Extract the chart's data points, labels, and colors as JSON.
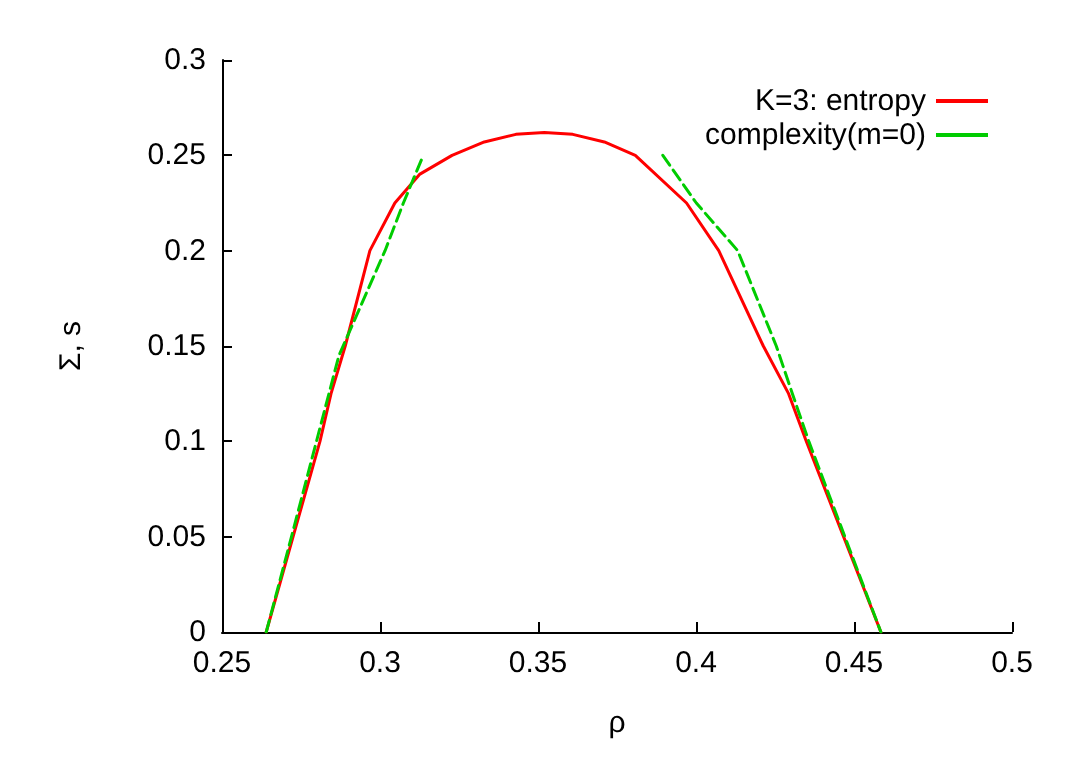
{
  "chart_data": {
    "type": "line",
    "xlabel": "ρ",
    "ylabel": "Σ, s",
    "xlim": [
      0.25,
      0.5
    ],
    "ylim": [
      0,
      0.3
    ],
    "xticks": [
      0.25,
      0.3,
      0.35,
      0.4,
      0.45,
      0.5
    ],
    "yticks": [
      0,
      0.05,
      0.1,
      0.15,
      0.2,
      0.25,
      0.3
    ],
    "grid": false,
    "legend": "top right",
    "marker": "none",
    "series": [
      {
        "name": "K=3: entropy",
        "color": "#ff0000",
        "line_style": "solid",
        "x": [
          0.264,
          0.2725,
          0.281,
          0.2845,
          0.289,
          0.2968,
          0.3047,
          0.3125,
          0.3228,
          0.333,
          0.343,
          0.352,
          0.361,
          0.371,
          0.3808,
          0.397,
          0.4072,
          0.4213,
          0.4293,
          0.4349,
          0.4467,
          0.4585
        ],
        "values": [
          0,
          0.05,
          0.1,
          0.125,
          0.15,
          0.2,
          0.225,
          0.24,
          0.25,
          0.257,
          0.261,
          0.262,
          0.261,
          0.257,
          0.25,
          0.225,
          0.2,
          0.15,
          0.125,
          0.1,
          0.05,
          0
        ]
      },
      {
        "name": "complexity(m=0)",
        "color": "#00cc00",
        "line_style": "dashed",
        "x": [
          0.264,
          0.272,
          0.2799,
          0.287,
          0.3016,
          0.3074,
          0.3137,
          null,
          0.3895,
          0.4001,
          0.4132,
          0.4254,
          0.4305,
          0.4357,
          0.4471,
          0.4585
        ],
        "values": [
          0,
          0.05,
          0.1,
          0.145,
          0.2,
          0.225,
          0.25,
          null,
          0.25,
          0.225,
          0.2,
          0.15,
          0.125,
          0.1,
          0.05,
          0
        ]
      }
    ]
  }
}
